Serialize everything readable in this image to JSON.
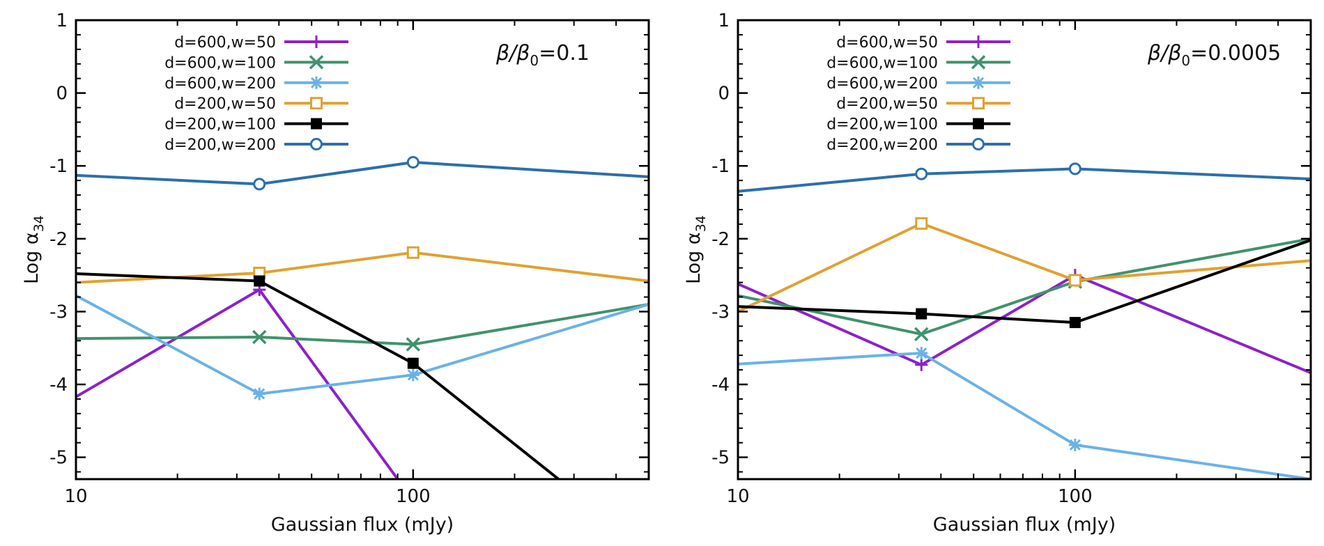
{
  "chart_data": [
    {
      "type": "line",
      "title": "",
      "annotation": {
        "prefix": "β/β",
        "sub": "0",
        "suffix": "=0.1"
      },
      "xlabel": "Gaussian flux (mJy)",
      "ylabel": {
        "base": "Log α",
        "sub": "34"
      },
      "xscale": "log",
      "xlim": [
        10,
        500
      ],
      "ylim": [
        -5.3,
        1
      ],
      "xticks": [
        {
          "value": 10,
          "label": "10"
        },
        {
          "value": 100,
          "label": "100"
        }
      ],
      "yticks": [
        {
          "value": 1,
          "label": "1"
        },
        {
          "value": 0,
          "label": "0"
        },
        {
          "value": -1,
          "label": "-1"
        },
        {
          "value": -2,
          "label": "-2"
        },
        {
          "value": -3,
          "label": "-3"
        },
        {
          "value": -4,
          "label": "-4"
        },
        {
          "value": -5,
          "label": "-5"
        }
      ],
      "grid": false,
      "legend_position": "top-left",
      "series": [
        {
          "name": "d=600,w=50",
          "color": "#8b22c9",
          "marker": "plus",
          "points": [
            [
              10,
              -4.17
            ],
            [
              35,
              -2.7
            ],
            [
              90,
              -5.3
            ]
          ],
          "markers": [
            [
              35,
              -2.7
            ]
          ]
        },
        {
          "name": "d=600,w=100",
          "color": "#40926e",
          "marker": "cross",
          "points": [
            [
              10,
              -3.37
            ],
            [
              35,
              -3.35
            ],
            [
              100,
              -3.45
            ],
            [
              500,
              -2.9
            ]
          ],
          "markers": [
            [
              35,
              -3.35
            ],
            [
              100,
              -3.45
            ]
          ]
        },
        {
          "name": "d=600,w=200",
          "color": "#6ab2e6",
          "marker": "star",
          "points": [
            [
              10,
              -2.78
            ],
            [
              35,
              -4.13
            ],
            [
              100,
              -3.87
            ],
            [
              500,
              -2.9
            ]
          ],
          "markers": [
            [
              35,
              -4.13
            ],
            [
              100,
              -3.87
            ]
          ]
        },
        {
          "name": "d=200,w=50",
          "color": "#e0a132",
          "marker": "square-open",
          "points": [
            [
              10,
              -2.6
            ],
            [
              35,
              -2.47
            ],
            [
              100,
              -2.19
            ],
            [
              500,
              -2.58
            ]
          ],
          "markers": [
            [
              35,
              -2.47
            ],
            [
              100,
              -2.19
            ]
          ]
        },
        {
          "name": "d=200,w=100",
          "color": "#000000",
          "marker": "square-filled",
          "points": [
            [
              10,
              -2.48
            ],
            [
              35,
              -2.58
            ],
            [
              100,
              -3.71
            ],
            [
              270,
              -5.3
            ]
          ],
          "markers": [
            [
              35,
              -2.58
            ],
            [
              100,
              -3.71
            ]
          ]
        },
        {
          "name": "d=200,w=200",
          "color": "#2c6fab",
          "marker": "circle-open",
          "points": [
            [
              10,
              -1.13
            ],
            [
              35,
              -1.25
            ],
            [
              100,
              -0.95
            ],
            [
              500,
              -1.15
            ]
          ],
          "markers": [
            [
              35,
              -1.25
            ],
            [
              100,
              -0.95
            ]
          ]
        }
      ]
    },
    {
      "type": "line",
      "title": "",
      "annotation": {
        "prefix": "β/β",
        "sub": "0",
        "suffix": "=0.0005"
      },
      "xlabel": "Gaussian flux (mJy)",
      "ylabel": {
        "base": "Log α",
        "sub": "34"
      },
      "xscale": "log",
      "xlim": [
        10,
        500
      ],
      "ylim": [
        -5.3,
        1
      ],
      "xticks": [
        {
          "value": 10,
          "label": "10"
        },
        {
          "value": 100,
          "label": "100"
        }
      ],
      "yticks": [
        {
          "value": 1,
          "label": "1"
        },
        {
          "value": 0,
          "label": "0"
        },
        {
          "value": -1,
          "label": "-1"
        },
        {
          "value": -2,
          "label": "-2"
        },
        {
          "value": -3,
          "label": "-3"
        },
        {
          "value": -4,
          "label": "-4"
        },
        {
          "value": -5,
          "label": "-5"
        }
      ],
      "grid": false,
      "legend_position": "top-left",
      "series": [
        {
          "name": "d=600,w=50",
          "color": "#8b22c9",
          "marker": "plus",
          "points": [
            [
              10,
              -2.62
            ],
            [
              35,
              -3.73
            ],
            [
              100,
              -2.5
            ],
            [
              500,
              -3.84
            ]
          ],
          "markers": [
            [
              35,
              -3.73
            ],
            [
              100,
              -2.5
            ]
          ]
        },
        {
          "name": "d=600,w=100",
          "color": "#40926e",
          "marker": "cross",
          "points": [
            [
              10,
              -2.78
            ],
            [
              35,
              -3.31
            ],
            [
              100,
              -2.59
            ],
            [
              500,
              -2.0
            ]
          ],
          "markers": [
            [
              35,
              -3.31
            ],
            [
              100,
              -2.59
            ]
          ]
        },
        {
          "name": "d=600,w=200",
          "color": "#6ab2e6",
          "marker": "star",
          "points": [
            [
              10,
              -3.72
            ],
            [
              35,
              -3.57
            ],
            [
              100,
              -4.83
            ],
            [
              500,
              -5.3
            ]
          ],
          "markers": [
            [
              35,
              -3.57
            ],
            [
              100,
              -4.83
            ]
          ]
        },
        {
          "name": "d=200,w=50",
          "color": "#e0a132",
          "marker": "square-open",
          "points": [
            [
              10,
              -3.0
            ],
            [
              35,
              -1.79
            ],
            [
              100,
              -2.57
            ],
            [
              500,
              -2.3
            ]
          ],
          "markers": [
            [
              35,
              -1.79
            ],
            [
              100,
              -2.57
            ]
          ]
        },
        {
          "name": "d=200,w=100",
          "color": "#000000",
          "marker": "square-filled",
          "points": [
            [
              10,
              -2.93
            ],
            [
              35,
              -3.03
            ],
            [
              100,
              -3.15
            ],
            [
              500,
              -2.02
            ]
          ],
          "markers": [
            [
              35,
              -3.03
            ],
            [
              100,
              -3.15
            ]
          ]
        },
        {
          "name": "d=200,w=200",
          "color": "#2c6fab",
          "marker": "circle-open",
          "points": [
            [
              10,
              -1.35
            ],
            [
              35,
              -1.11
            ],
            [
              100,
              -1.04
            ],
            [
              500,
              -1.18
            ]
          ],
          "markers": [
            [
              35,
              -1.11
            ],
            [
              100,
              -1.04
            ]
          ]
        }
      ]
    }
  ]
}
